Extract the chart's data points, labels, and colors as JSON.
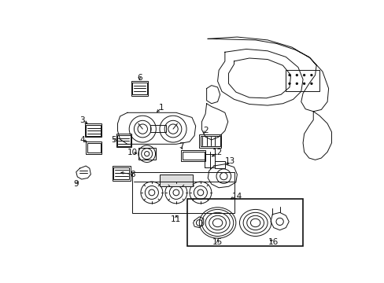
{
  "bg_color": "#ffffff",
  "line_color": "#111111",
  "fig_width": 4.89,
  "fig_height": 3.6,
  "dpi": 100,
  "font_size": 7.5,
  "lw": 0.7
}
